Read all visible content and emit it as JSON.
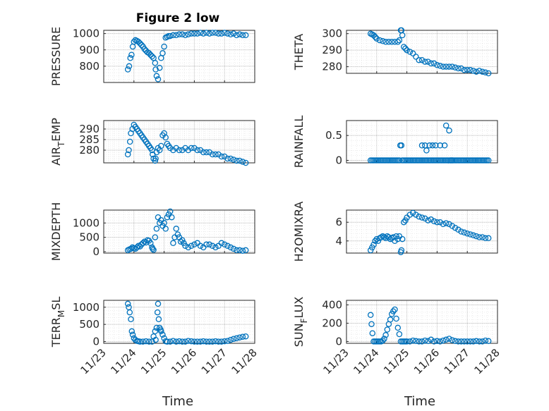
{
  "figure": {
    "title": "Figure 2 low",
    "xlabel": "Time",
    "marker_color": "#0072BD",
    "x_ticks": [
      "11/23",
      "11/24",
      "11/25",
      "11/26",
      "11/27",
      "11/28"
    ]
  },
  "chart_data": [
    {
      "type": "scatter",
      "ylabel": "PRESSURE",
      "xlim": [
        0,
        5
      ],
      "ylim": [
        700,
        1020
      ],
      "yticks": [
        800,
        900,
        1000
      ],
      "series": [
        {
          "x": [
            0.8,
            0.84,
            0.88,
            0.92,
            0.96,
            1.0,
            1.05,
            1.1,
            1.15,
            1.2,
            1.25,
            1.3,
            1.35,
            1.4,
            1.45,
            1.5,
            1.55,
            1.6,
            1.65,
            1.7,
            1.72,
            1.75,
            1.8,
            1.85,
            1.9,
            1.95,
            2.0,
            2.05,
            2.1,
            2.15,
            2.2,
            2.3,
            2.4,
            2.5,
            2.6,
            2.7,
            2.8,
            2.9,
            3.0,
            3.1,
            3.2,
            3.3,
            3.4,
            3.5,
            3.6,
            3.7,
            3.8,
            3.9,
            4.0,
            4.1,
            4.2,
            4.3,
            4.4,
            4.5,
            4.6,
            4.7
          ],
          "y": [
            780,
            800,
            850,
            870,
            920,
            950,
            960,
            955,
            950,
            940,
            930,
            920,
            905,
            895,
            885,
            880,
            870,
            860,
            850,
            820,
            780,
            740,
            720,
            790,
            850,
            880,
            920,
            975,
            980,
            985,
            985,
            990,
            990,
            995,
            995,
            990,
            995,
            1000,
            1000,
            1000,
            1005,
            1000,
            1005,
            1000,
            1005,
            1005,
            1000,
            1000,
            1005,
            1000,
            995,
            1000,
            990,
            995,
            990,
            990
          ]
        }
      ]
    },
    {
      "type": "scatter",
      "ylabel": "THETA",
      "xlim": [
        0,
        5
      ],
      "ylim": [
        276,
        302
      ],
      "yticks": [
        280,
        290,
        300
      ],
      "series": [
        {
          "x": [
            0.8,
            0.85,
            0.9,
            0.95,
            1.0,
            1.1,
            1.2,
            1.3,
            1.4,
            1.5,
            1.6,
            1.7,
            1.75,
            1.8,
            1.82,
            1.85,
            1.9,
            1.95,
            2.0,
            2.1,
            2.2,
            2.3,
            2.4,
            2.5,
            2.6,
            2.7,
            2.8,
            2.9,
            3.0,
            3.1,
            3.2,
            3.3,
            3.4,
            3.5,
            3.6,
            3.7,
            3.8,
            3.9,
            4.0,
            4.1,
            4.2,
            4.3,
            4.4,
            4.5,
            4.6,
            4.7
          ],
          "y": [
            300,
            299.5,
            299,
            298,
            297,
            296,
            295.5,
            295,
            295,
            295,
            295,
            295,
            296,
            302,
            302,
            299,
            292,
            291,
            290,
            289,
            288,
            286,
            284,
            284,
            283,
            283,
            282,
            282,
            281,
            280.5,
            280,
            280,
            280,
            280,
            279.5,
            279,
            279,
            278,
            278,
            278,
            277.5,
            277,
            277.5,
            277,
            276.5,
            276
          ]
        }
      ]
    },
    {
      "type": "scatter",
      "ylabel": "AIR_TEMP",
      "xlim": [
        0,
        5
      ],
      "ylim": [
        274,
        294
      ],
      "yticks": [
        280,
        285,
        290
      ],
      "series": [
        {
          "x": [
            0.8,
            0.83,
            0.87,
            0.9,
            0.95,
            1.0,
            1.05,
            1.1,
            1.15,
            1.2,
            1.25,
            1.3,
            1.35,
            1.4,
            1.45,
            1.5,
            1.55,
            1.6,
            1.62,
            1.65,
            1.7,
            1.72,
            1.75,
            1.8,
            1.85,
            1.9,
            1.95,
            2.0,
            2.05,
            2.1,
            2.15,
            2.2,
            2.3,
            2.4,
            2.5,
            2.6,
            2.7,
            2.8,
            2.9,
            3.0,
            3.1,
            3.2,
            3.3,
            3.4,
            3.5,
            3.6,
            3.7,
            3.8,
            3.9,
            4.0,
            4.1,
            4.2,
            4.3,
            4.4,
            4.5,
            4.6,
            4.7
          ],
          "y": [
            278,
            280,
            284,
            288,
            290,
            292,
            291,
            290,
            289,
            288,
            287,
            286,
            285,
            284,
            283,
            282,
            281,
            280,
            278,
            276,
            275,
            276,
            279,
            281,
            280,
            282,
            287,
            288,
            286,
            283,
            282,
            281,
            280,
            281,
            280,
            280,
            281,
            280,
            281,
            281,
            280,
            280,
            279,
            279,
            279,
            278,
            278,
            278,
            277,
            277,
            276,
            276,
            275.5,
            275,
            275,
            274.5,
            274
          ]
        }
      ]
    },
    {
      "type": "scatter",
      "ylabel": "RAINFALL",
      "xlim": [
        0,
        5
      ],
      "ylim": [
        -0.05,
        0.8
      ],
      "yticks": [
        0,
        0.5
      ],
      "series": [
        {
          "x": [
            0.8,
            0.85,
            0.9,
            0.95,
            1.0,
            1.05,
            1.1,
            1.15,
            1.2,
            1.25,
            1.3,
            1.35,
            1.4,
            1.45,
            1.5,
            1.55,
            1.6,
            1.65,
            1.7,
            1.75,
            1.78,
            1.82,
            1.85,
            1.9,
            1.95,
            2.0,
            2.05,
            2.1,
            2.15,
            2.2,
            2.25,
            2.3,
            2.35,
            2.4,
            2.45,
            2.5,
            2.55,
            2.6,
            2.65,
            2.7,
            2.75,
            2.8,
            2.85,
            2.9,
            2.95,
            3.0,
            3.05,
            3.1,
            3.15,
            3.2,
            3.25,
            3.3,
            3.35,
            3.4,
            3.45,
            3.5,
            3.55,
            3.6,
            3.65,
            3.7,
            3.75,
            3.8,
            3.85,
            3.9,
            3.95,
            4.0,
            4.05,
            4.1,
            4.15,
            4.2,
            4.25,
            4.3,
            4.35,
            4.4,
            4.45,
            4.5,
            4.55,
            4.6,
            4.65,
            4.7,
            2.5,
            2.6,
            2.65,
            2.75,
            2.85,
            2.95,
            3.1,
            3.25,
            3.3,
            3.4,
            3.45,
            3.5
          ],
          "y": [
            0,
            0,
            0,
            0,
            0,
            0,
            0,
            0,
            0,
            0,
            0,
            0,
            0,
            0,
            0,
            0,
            0,
            0,
            0,
            0,
            0.3,
            0.3,
            0,
            0,
            0,
            0,
            0,
            0,
            0,
            0,
            0,
            0,
            0,
            0,
            0,
            0,
            0,
            0,
            0,
            0,
            0,
            0,
            0,
            0,
            0,
            0,
            0,
            0,
            0,
            0,
            0,
            0,
            0,
            0,
            0,
            0,
            0,
            0,
            0,
            0,
            0,
            0,
            0,
            0,
            0,
            0,
            0,
            0,
            0,
            0,
            0,
            0,
            0,
            0,
            0,
            0,
            0,
            0,
            0,
            0,
            0.3,
            0.3,
            0.2,
            0.3,
            0.3,
            0.3,
            0.3,
            0.3,
            0.7,
            0.6,
            0,
            0
          ]
        }
      ]
    },
    {
      "type": "scatter",
      "ylabel": "MIXDEPTH",
      "xlim": [
        0,
        5
      ],
      "ylim": [
        -50,
        1450
      ],
      "yticks": [
        0,
        500,
        1000
      ],
      "series": [
        {
          "x": [
            0.8,
            0.85,
            0.9,
            0.95,
            1.0,
            1.05,
            1.1,
            1.15,
            1.2,
            1.25,
            1.3,
            1.35,
            1.4,
            1.45,
            1.5,
            1.55,
            1.6,
            1.62,
            1.65,
            1.7,
            1.75,
            1.8,
            1.85,
            1.9,
            1.95,
            2.0,
            2.05,
            2.1,
            2.15,
            2.2,
            2.25,
            2.3,
            2.35,
            2.4,
            2.45,
            2.5,
            2.55,
            2.6,
            2.65,
            2.7,
            2.8,
            2.9,
            3.0,
            3.1,
            3.2,
            3.3,
            3.4,
            3.5,
            3.6,
            3.7,
            3.8,
            3.9,
            4.0,
            4.1,
            4.2,
            4.3,
            4.4,
            4.5,
            4.6,
            4.7
          ],
          "y": [
            50,
            80,
            100,
            150,
            120,
            100,
            150,
            200,
            180,
            250,
            300,
            350,
            320,
            400,
            380,
            300,
            150,
            100,
            60,
            500,
            800,
            1200,
            1000,
            1100,
            900,
            1000,
            800,
            1200,
            1300,
            1400,
            1200,
            300,
            500,
            800,
            600,
            500,
            350,
            400,
            300,
            200,
            150,
            200,
            250,
            300,
            200,
            150,
            250,
            250,
            200,
            150,
            200,
            300,
            250,
            200,
            150,
            100,
            50,
            50,
            30,
            50
          ]
        }
      ]
    },
    {
      "type": "scatter",
      "ylabel": "H2OMIXRA",
      "xlim": [
        0,
        5
      ],
      "ylim": [
        2.7,
        7.3
      ],
      "yticks": [
        4,
        6
      ],
      "series": [
        {
          "x": [
            0.8,
            0.85,
            0.9,
            0.95,
            1.0,
            1.05,
            1.1,
            1.15,
            1.2,
            1.25,
            1.3,
            1.35,
            1.4,
            1.45,
            1.5,
            1.55,
            1.6,
            1.65,
            1.7,
            1.75,
            1.8,
            1.82,
            1.85,
            1.9,
            1.95,
            2.0,
            2.1,
            2.2,
            2.3,
            2.4,
            2.5,
            2.6,
            2.7,
            2.8,
            2.9,
            3.0,
            3.1,
            3.2,
            3.3,
            3.4,
            3.5,
            3.6,
            3.7,
            3.8,
            3.9,
            4.0,
            4.1,
            4.2,
            4.3,
            4.4,
            4.5,
            4.6,
            4.7
          ],
          "y": [
            3.0,
            3.3,
            3.6,
            4.0,
            4.2,
            4.0,
            4.3,
            4.4,
            4.5,
            4.4,
            4.3,
            4.5,
            4.4,
            4.2,
            4.3,
            4.4,
            4.0,
            4.5,
            4.2,
            4.5,
            2.8,
            3.0,
            4.2,
            6.0,
            6.2,
            6.5,
            6.8,
            7.0,
            6.8,
            6.6,
            6.5,
            6.4,
            6.2,
            6.3,
            6.1,
            6.0,
            6.0,
            5.8,
            5.9,
            5.8,
            5.6,
            5.4,
            5.2,
            5.0,
            4.9,
            4.8,
            4.7,
            4.6,
            4.5,
            4.4,
            4.4,
            4.3,
            4.3
          ]
        }
      ]
    },
    {
      "type": "scatter",
      "ylabel": "TERR_MSL",
      "xlim": [
        0,
        5
      ],
      "ylim": [
        -50,
        1200
      ],
      "yticks": [
        0,
        500,
        1000
      ],
      "series": [
        {
          "x": [
            0.8,
            0.83,
            0.86,
            0.9,
            0.93,
            0.96,
            1.0,
            1.05,
            1.1,
            1.15,
            1.2,
            1.3,
            1.4,
            1.5,
            1.6,
            1.65,
            1.7,
            1.72,
            1.75,
            1.78,
            1.8,
            1.82,
            1.85,
            1.88,
            1.9,
            1.95,
            2.0,
            2.05,
            2.1,
            2.2,
            2.3,
            2.4,
            2.5,
            2.6,
            2.7,
            2.8,
            2.9,
            3.0,
            3.1,
            3.2,
            3.3,
            3.4,
            3.5,
            3.6,
            3.7,
            3.8,
            3.9,
            4.0,
            4.1,
            4.2,
            4.3,
            4.4,
            4.5,
            4.6,
            4.7
          ],
          "y": [
            1100,
            1000,
            850,
            650,
            300,
            200,
            100,
            50,
            20,
            10,
            0,
            0,
            10,
            0,
            0,
            150,
            300,
            50,
            400,
            850,
            1100,
            650,
            400,
            350,
            300,
            200,
            100,
            10,
            0,
            0,
            20,
            0,
            10,
            0,
            0,
            20,
            10,
            0,
            0,
            0,
            10,
            0,
            0,
            0,
            10,
            0,
            0,
            10,
            20,
            50,
            80,
            100,
            120,
            140,
            150
          ]
        }
      ]
    },
    {
      "type": "scatter",
      "ylabel": "SUN_FLUX",
      "xlim": [
        0,
        5
      ],
      "ylim": [
        -20,
        450
      ],
      "yticks": [
        0,
        200,
        400
      ],
      "series": [
        {
          "x": [
            0.8,
            0.83,
            0.86,
            0.9,
            0.95,
            1.0,
            1.05,
            1.1,
            1.15,
            1.2,
            1.25,
            1.3,
            1.35,
            1.4,
            1.45,
            1.5,
            1.55,
            1.6,
            1.65,
            1.7,
            1.75,
            1.8,
            1.85,
            1.9,
            1.95,
            2.0,
            2.1,
            2.2,
            2.3,
            2.4,
            2.5,
            2.6,
            2.7,
            2.8,
            2.9,
            3.0,
            3.1,
            3.2,
            3.3,
            3.4,
            3.5,
            3.6,
            3.7,
            3.8,
            3.9,
            4.0,
            4.1,
            4.2,
            4.3,
            4.4,
            4.5,
            4.6,
            4.7
          ],
          "y": [
            290,
            190,
            90,
            0,
            0,
            0,
            0,
            0,
            0,
            10,
            30,
            70,
            130,
            190,
            240,
            300,
            330,
            350,
            250,
            150,
            80,
            0,
            0,
            0,
            0,
            0,
            0,
            10,
            5,
            0,
            0,
            10,
            5,
            20,
            0,
            5,
            0,
            10,
            20,
            30,
            15,
            5,
            0,
            0,
            0,
            0,
            0,
            0,
            5,
            0,
            0,
            10,
            5
          ]
        }
      ]
    }
  ]
}
